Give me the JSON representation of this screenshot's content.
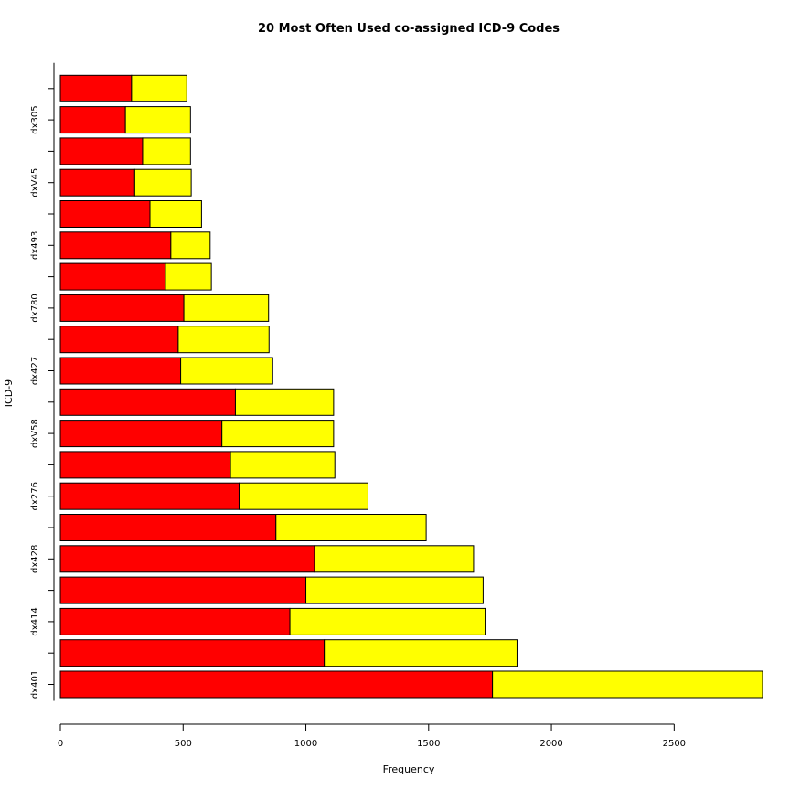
{
  "chart_data": {
    "type": "bar",
    "orientation": "horizontal",
    "stacked": true,
    "title": "20 Most Often Used co-assigned ICD-9 Codes",
    "xlabel": "Frequency",
    "ylabel": "ICD-9",
    "xlim": [
      0,
      2860
    ],
    "xticks": [
      0,
      500,
      1000,
      1500,
      2000,
      2500
    ],
    "bar_count": 20,
    "visible_category_labels": [
      "dx401",
      "dx414",
      "dx428",
      "dx276",
      "dxV58",
      "dx427",
      "dx780",
      "dx493",
      "dxV45",
      "dx305"
    ],
    "visible_category_positions": [
      0,
      2,
      4,
      6,
      8,
      10,
      12,
      14,
      16,
      18
    ],
    "series": [
      {
        "color": "#ff0000",
        "values": [
          1760,
          1075,
          935,
          1000,
          1035,
          878,
          728,
          693,
          658,
          713,
          490,
          480,
          503,
          428,
          450,
          365,
          303,
          335,
          265,
          290
        ]
      },
      {
        "color": "#ffff00",
        "values": [
          1100,
          785,
          795,
          722,
          648,
          612,
          525,
          425,
          455,
          400,
          375,
          370,
          345,
          187,
          160,
          210,
          230,
          195,
          265,
          225
        ]
      }
    ],
    "bar_edge_color": "#000000",
    "grid": false,
    "legend": "none"
  }
}
